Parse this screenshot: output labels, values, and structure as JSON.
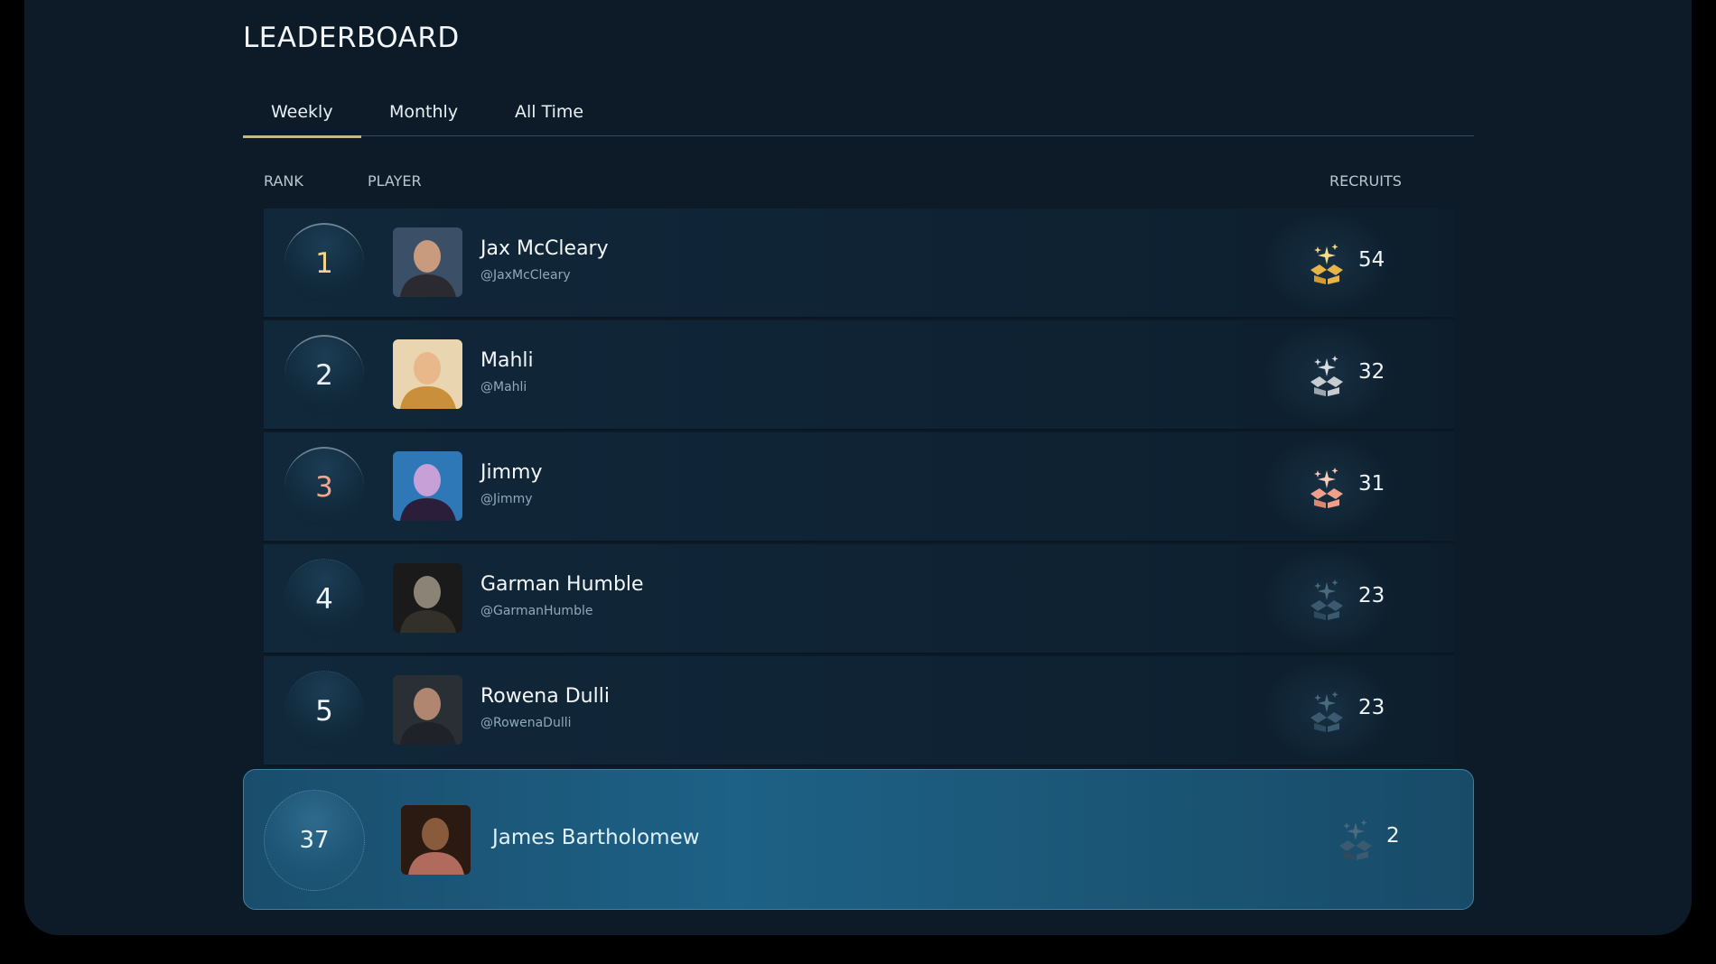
{
  "title": "LEADERBOARD",
  "tabs": [
    {
      "label": "Weekly",
      "active": true
    },
    {
      "label": "Monthly",
      "active": false
    },
    {
      "label": "All Time",
      "active": false
    }
  ],
  "columns": {
    "rank": "RANK",
    "player": "PLAYER",
    "recruits": "RECRUITS"
  },
  "colors": {
    "gold": "#e8b44a",
    "silver": "#c8ccd2",
    "bronze": "#f0a08a",
    "default_icon": "#3b5a70",
    "accent_underline": "#c9b58a"
  },
  "rows": [
    {
      "rank": "1",
      "name": "Jax McCleary",
      "handle": "@JaxMcCleary",
      "recruits": "54",
      "tier": "gold",
      "icon": "gift-box-icon"
    },
    {
      "rank": "2",
      "name": "Mahli",
      "handle": "@Mahli",
      "recruits": "32",
      "tier": "silver",
      "icon": "gift-box-icon"
    },
    {
      "rank": "3",
      "name": "Jimmy",
      "handle": "@Jimmy",
      "recruits": "31",
      "tier": "bronze",
      "icon": "gift-box-icon"
    },
    {
      "rank": "4",
      "name": "Garman Humble",
      "handle": "@GarmanHumble",
      "recruits": "23",
      "tier": "none",
      "icon": "gift-box-icon"
    },
    {
      "rank": "5",
      "name": "Rowena Dulli",
      "handle": "@RowenaDulli",
      "recruits": "23",
      "tier": "none",
      "icon": "gift-box-icon"
    }
  ],
  "current_user": {
    "rank": "37",
    "name": "James Bartholomew",
    "recruits": "2",
    "icon": "gift-box-icon"
  }
}
